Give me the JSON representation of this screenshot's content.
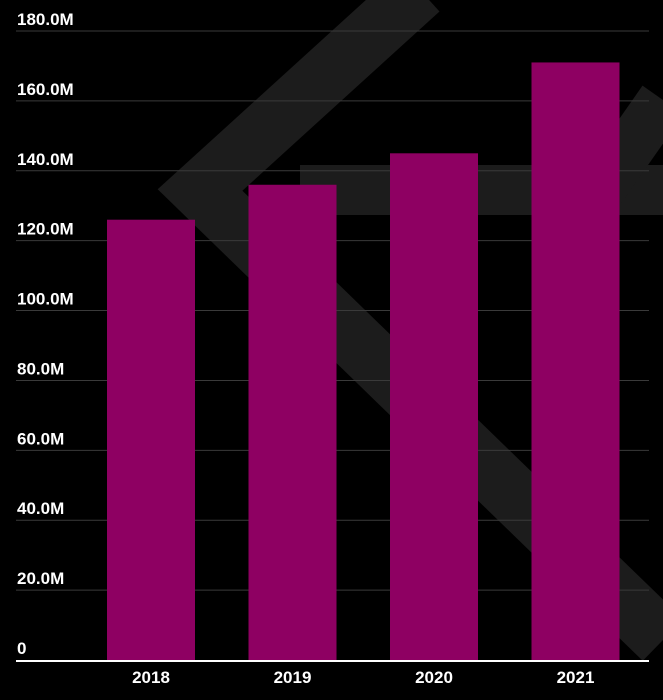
{
  "colors": {
    "background": "#000000",
    "bar": "#8E0062",
    "grid": "#3a3a3a",
    "axis": "#ffffff",
    "text": "#ffffff",
    "watermark": "#1c1c1c"
  },
  "chart_data": {
    "type": "bar",
    "title": "",
    "xlabel": "",
    "ylabel": "",
    "categories": [
      "2018",
      "2019",
      "2020",
      "2021"
    ],
    "values": [
      126000000,
      136000000,
      145000000,
      171000000
    ],
    "ylim": [
      0,
      180000000
    ],
    "yticks": [
      0,
      20000000,
      40000000,
      60000000,
      80000000,
      100000000,
      120000000,
      140000000,
      160000000,
      180000000
    ],
    "ytick_labels": [
      "0",
      "20.0M",
      "40.0M",
      "60.0M",
      "80.0M",
      "100.0M",
      "120.0M",
      "140.0M",
      "160.0M",
      "180.0M"
    ],
    "grid": true,
    "legend": "none"
  }
}
